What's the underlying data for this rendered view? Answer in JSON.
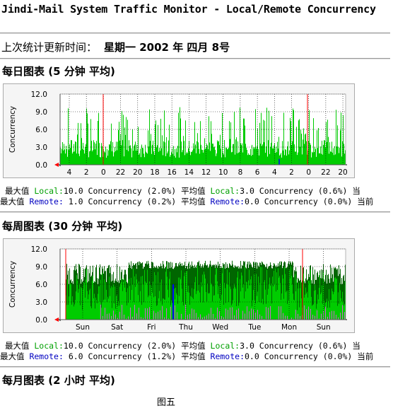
{
  "page": {
    "title": "Jindi-Mail System Traffic Monitor - Local/Remote Concurrency",
    "update_label": "上次统计更新时间：",
    "update_value": "星期一 2002 年 四月 8号",
    "caption": "图五"
  },
  "sections": {
    "daily_title": "每日图表 (5 分钟 平均)",
    "weekly_title": "每周图表 (30 分钟 平均)",
    "monthly_title": "每月图表 (2 小时 平均)"
  },
  "daily_stats": {
    "line1": {
      "max_label": "最大值",
      "local_label": "Local:",
      "local_max": "10.0 Concurrency (2.0%)",
      "avg_label": "平均值",
      "local_label2": "Local:",
      "local_avg": "3.0 Concurrency (0.6%)",
      "tail": "当"
    },
    "line2": {
      "max_label": "最大值",
      "remote_label": "Remote:",
      "remote_max": " 1.0 Concurrency (0.2%)",
      "avg_label": "平均值",
      "remote_label2": "Remote:",
      "remote_avg": "0.0 Concurrency (0.0%)",
      "tail": "当前"
    }
  },
  "weekly_stats": {
    "line1": {
      "max_label": "最大值",
      "local_label": "Local:",
      "local_max": "10.0 Concurrency (2.0%)",
      "avg_label": "平均值",
      "local_label2": "Local:",
      "local_avg": "3.0 Concurrency (0.6%)",
      "tail": "当"
    },
    "line2": {
      "max_label": "最大值",
      "remote_label": "Remote:",
      "remote_max": " 6.0 Concurrency (1.2%)",
      "avg_label": "平均值",
      "remote_label2": "Remote:",
      "remote_avg": "0.0 Concurrency (0.0%)",
      "tail": "当前"
    }
  },
  "chart_data": [
    {
      "type": "area",
      "ylabel": "Concurrency",
      "ylim": [
        0,
        12
      ],
      "yticks": [
        "12.0",
        "9.0",
        "6.0",
        "3.0",
        "0.0"
      ],
      "x_ticks": [
        "4",
        "2",
        "0",
        "22",
        "20",
        "18",
        "16",
        "14",
        "12",
        "10",
        "8",
        "6",
        "4",
        "2",
        "0",
        "22",
        "20"
      ],
      "grid": true,
      "series": [
        {
          "name": "Local",
          "color": "#00cc00",
          "max": 10.0,
          "avg": 3.0
        },
        {
          "name": "Remote",
          "color": "#0000ff",
          "max": 1.0,
          "avg": 0.0
        }
      ]
    },
    {
      "type": "area",
      "ylabel": "Concurrency",
      "ylim": [
        0,
        12
      ],
      "yticks": [
        "12.0",
        "9.0",
        "6.0",
        "3.0",
        "0.0"
      ],
      "x_ticks": [
        "Sun",
        "Sat",
        "Fri",
        "Thu",
        "Wed",
        "Tue",
        "Mon",
        "Sun"
      ],
      "grid": true,
      "series": [
        {
          "name": "Local",
          "color": "#00cc00",
          "max": 10.0,
          "avg": 3.0
        },
        {
          "name": "Remote",
          "color": "#0000ff",
          "max": 6.0,
          "avg": 0.0
        }
      ]
    }
  ],
  "colors": {
    "local": "#00cc00",
    "local_max": "#006600",
    "remote": "#0000ff",
    "remote_max": "#cc66cc",
    "marker": "#ff0000"
  }
}
